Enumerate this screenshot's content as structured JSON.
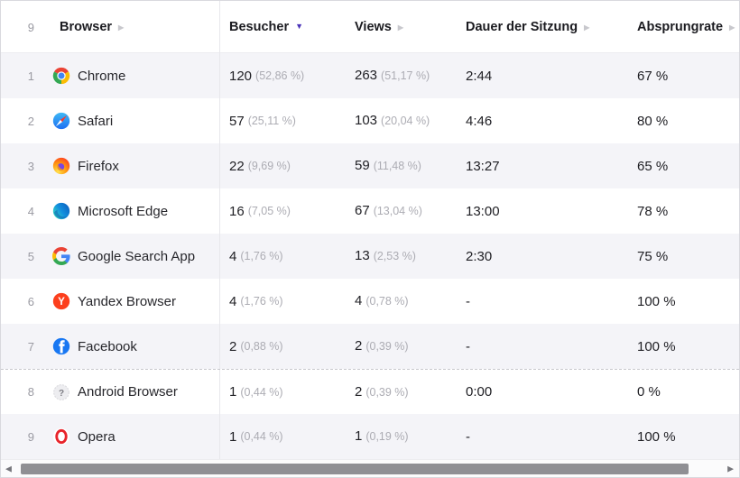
{
  "header": {
    "row_count": "9",
    "columns": [
      {
        "label": "Browser",
        "sorted": false
      },
      {
        "label": "Besucher",
        "sorted": true,
        "direction": "desc"
      },
      {
        "label": "Views",
        "sorted": false
      },
      {
        "label": "Dauer der Sitzung",
        "sorted": false
      },
      {
        "label": "Absprungrate",
        "sorted": false
      }
    ]
  },
  "rows": [
    {
      "rank": "1",
      "icon": "chrome-icon",
      "name": "Chrome",
      "visitors": "120",
      "visitors_pct": "(52,86 %)",
      "views": "263",
      "views_pct": "(51,17 %)",
      "session_duration": "2:44",
      "bounce_rate": "67 %"
    },
    {
      "rank": "2",
      "icon": "safari-icon",
      "name": "Safari",
      "visitors": "57",
      "visitors_pct": "(25,11 %)",
      "views": "103",
      "views_pct": "(20,04 %)",
      "session_duration": "4:46",
      "bounce_rate": "80 %"
    },
    {
      "rank": "3",
      "icon": "firefox-icon",
      "name": "Firefox",
      "visitors": "22",
      "visitors_pct": "(9,69 %)",
      "views": "59",
      "views_pct": "(11,48 %)",
      "session_duration": "13:27",
      "bounce_rate": "65 %"
    },
    {
      "rank": "4",
      "icon": "edge-icon",
      "name": "Microsoft Edge",
      "visitors": "16",
      "visitors_pct": "(7,05 %)",
      "views": "67",
      "views_pct": "(13,04 %)",
      "session_duration": "13:00",
      "bounce_rate": "78 %"
    },
    {
      "rank": "5",
      "icon": "google-icon",
      "name": "Google Search App",
      "visitors": "4",
      "visitors_pct": "(1,76 %)",
      "views": "13",
      "views_pct": "(2,53 %)",
      "session_duration": "2:30",
      "bounce_rate": "75 %"
    },
    {
      "rank": "6",
      "icon": "yandex-icon",
      "name": "Yandex Browser",
      "visitors": "4",
      "visitors_pct": "(1,76 %)",
      "views": "4",
      "views_pct": "(0,78 %)",
      "session_duration": "-",
      "bounce_rate": "100 %"
    },
    {
      "rank": "7",
      "icon": "facebook-icon",
      "name": "Facebook",
      "visitors": "2",
      "visitors_pct": "(0,88 %)",
      "views": "2",
      "views_pct": "(0,39 %)",
      "session_duration": "-",
      "bounce_rate": "100 %"
    },
    {
      "rank": "8",
      "icon": "unknown-browser-icon",
      "name": "Android Browser",
      "visitors": "1",
      "visitors_pct": "(0,44 %)",
      "views": "2",
      "views_pct": "(0,39 %)",
      "session_duration": "0:00",
      "bounce_rate": "0 %",
      "separator": "dashed"
    },
    {
      "rank": "9",
      "icon": "opera-icon",
      "name": "Opera",
      "visitors": "1",
      "visitors_pct": "(0,44 %)",
      "views": "1",
      "views_pct": "(0,19 %)",
      "session_duration": "-",
      "bounce_rate": "100 %"
    }
  ],
  "colors": {
    "sorted_arrow": "#4a33b8",
    "unsorted_arrow": "#c8c8cd",
    "row_stripe": "#f4f4f8"
  },
  "scrollbar": {
    "orientation": "horizontal"
  }
}
